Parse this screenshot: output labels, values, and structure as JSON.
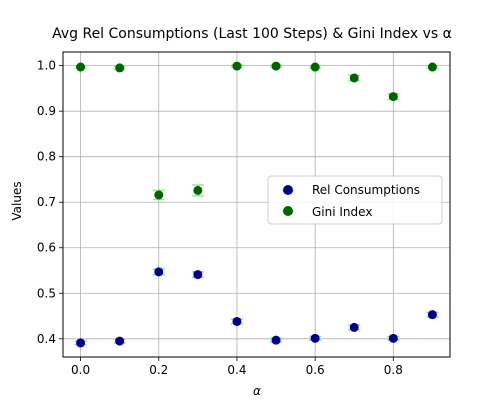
{
  "chart_data": {
    "type": "scatter",
    "title": "Avg Rel Consumptions (Last 100 Steps) & Gini Index vs α",
    "xlabel": "α",
    "ylabel": "Values",
    "xlim": [
      -0.045,
      0.945
    ],
    "ylim": [
      0.36,
      1.03
    ],
    "xticks": [
      0.0,
      0.2,
      0.4,
      0.6,
      0.8
    ],
    "xtick_labels": [
      "0.0",
      "0.2",
      "0.4",
      "0.6",
      "0.8"
    ],
    "yticks": [
      0.4,
      0.5,
      0.6,
      0.7,
      0.8,
      0.9,
      1.0
    ],
    "ytick_labels": [
      "0.4",
      "0.5",
      "0.6",
      "0.7",
      "0.8",
      "0.9",
      "1.0"
    ],
    "grid": true,
    "legend_position": "center-right",
    "series": [
      {
        "name": "Rel Consumptions",
        "color": "#000080",
        "error_color": "#87ceeb",
        "x": [
          0.0,
          0.1,
          0.2,
          0.3,
          0.4,
          0.5,
          0.6,
          0.7,
          0.8,
          0.9
        ],
        "y": [
          0.391,
          0.395,
          0.547,
          0.541,
          0.438,
          0.397,
          0.401,
          0.425,
          0.401,
          0.453
        ],
        "error": [
          0.004,
          0.004,
          0.006,
          0.006,
          0.005,
          0.004,
          0.004,
          0.005,
          0.004,
          0.005
        ]
      },
      {
        "name": "Gini Index",
        "color": "#006400",
        "error_color": "#90ee90",
        "x": [
          0.0,
          0.1,
          0.2,
          0.3,
          0.4,
          0.5,
          0.6,
          0.7,
          0.8,
          0.9
        ],
        "y": [
          0.997,
          0.995,
          0.716,
          0.726,
          0.999,
          0.999,
          0.997,
          0.973,
          0.932,
          0.997
        ],
        "error": [
          0.003,
          0.003,
          0.01,
          0.012,
          0.002,
          0.002,
          0.003,
          0.006,
          0.006,
          0.003
        ]
      }
    ]
  }
}
